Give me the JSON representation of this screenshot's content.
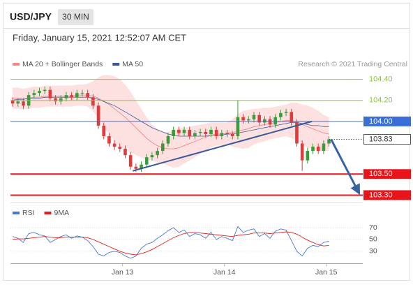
{
  "header": {
    "symbol": "USD/JPY",
    "interval": "30 MIN",
    "timestamp": "Friday, January 15, 2021 12:52:07 AM CET"
  },
  "chart_data": [
    {
      "type": "candlestick",
      "source": "Research © 2021 Trading Central",
      "xlim": [
        -0.4,
        65.3
      ],
      "ylim": [
        103.23,
        104.49
      ],
      "yticks": [
        {
          "value": 104.4,
          "label": "104.40"
        },
        {
          "value": 104.2,
          "label": "104.20"
        }
      ],
      "tick_color": "#8cc63f",
      "up_color": "#3c9a3c",
      "down_color": "#e03a3a",
      "open": [
        104.2,
        104.17,
        104.19,
        104.15,
        104.25,
        104.27,
        104.29,
        104.3,
        104.22,
        104.19,
        104.22,
        104.25,
        104.23,
        104.27,
        104.27,
        104.23,
        104.15,
        103.96,
        103.86,
        103.79,
        103.76,
        103.74,
        103.68,
        103.57,
        103.55,
        103.59,
        103.66,
        103.68,
        103.72,
        103.79,
        103.86,
        103.92,
        103.89,
        103.92,
        103.86,
        103.89,
        103.9,
        103.88,
        103.92,
        103.86,
        103.89,
        103.88,
        103.86,
        104.04,
        104.01,
        104.02,
        104.06,
        103.99,
        104.02,
        103.97,
        104.04,
        104.08,
        104.09,
        103.99,
        103.79,
        103.63,
        103.72,
        103.76,
        103.72,
        103.79
      ],
      "high": [
        104.23,
        104.22,
        104.22,
        104.28,
        104.3,
        104.32,
        104.33,
        104.33,
        104.25,
        104.25,
        104.28,
        104.28,
        104.3,
        104.3,
        104.3,
        104.26,
        104.18,
        103.99,
        103.89,
        103.82,
        103.79,
        103.77,
        103.71,
        103.6,
        103.62,
        103.69,
        103.71,
        103.75,
        103.82,
        103.89,
        103.95,
        103.95,
        103.95,
        103.95,
        103.92,
        103.93,
        103.93,
        103.95,
        103.95,
        103.92,
        103.92,
        103.91,
        104.2,
        104.07,
        104.05,
        104.09,
        104.09,
        104.05,
        104.05,
        104.07,
        104.11,
        104.12,
        104.12,
        104.02,
        103.82,
        103.75,
        103.79,
        103.79,
        103.82,
        103.86
      ],
      "low": [
        104.14,
        104.14,
        104.12,
        104.12,
        104.22,
        104.24,
        104.26,
        104.19,
        104.16,
        104.16,
        104.19,
        104.2,
        104.2,
        104.24,
        104.2,
        104.12,
        103.93,
        103.83,
        103.76,
        103.73,
        103.71,
        103.65,
        103.54,
        103.52,
        103.52,
        103.56,
        103.63,
        103.65,
        103.69,
        103.76,
        103.83,
        103.86,
        103.86,
        103.83,
        103.83,
        103.86,
        103.85,
        103.85,
        103.83,
        103.83,
        103.85,
        103.83,
        103.83,
        103.98,
        103.98,
        103.99,
        103.96,
        103.96,
        103.94,
        103.94,
        104.01,
        104.05,
        103.96,
        103.76,
        103.53,
        103.6,
        103.69,
        103.69,
        103.69,
        103.76
      ],
      "close": [
        104.17,
        104.19,
        104.15,
        104.25,
        104.27,
        104.29,
        104.3,
        104.22,
        104.19,
        104.22,
        104.25,
        104.23,
        104.27,
        104.27,
        104.23,
        104.15,
        103.96,
        103.86,
        103.79,
        103.76,
        103.74,
        103.68,
        103.57,
        103.55,
        103.59,
        103.66,
        103.68,
        103.72,
        103.79,
        103.86,
        103.92,
        103.89,
        103.92,
        103.86,
        103.89,
        103.9,
        103.88,
        103.92,
        103.86,
        103.89,
        103.88,
        103.86,
        104.04,
        104.01,
        104.02,
        104.06,
        103.99,
        104.02,
        103.97,
        104.04,
        104.08,
        104.09,
        103.99,
        103.79,
        103.63,
        103.72,
        103.76,
        103.72,
        103.79,
        103.83
      ],
      "series": [
        {
          "name": "MA 20 + Bollinger Bands",
          "color": "#f08a8a",
          "band_color": "#fde0e0",
          "values": [
            104.22,
            104.22,
            104.21,
            104.22,
            104.23,
            104.23,
            104.24,
            104.24,
            104.24,
            104.24,
            104.24,
            104.24,
            104.25,
            104.25,
            104.25,
            104.24,
            104.22,
            104.19,
            104.16,
            104.12,
            104.08,
            104.04,
            103.99,
            103.94,
            103.89,
            103.84,
            103.8,
            103.77,
            103.75,
            103.74,
            103.74,
            103.75,
            103.77,
            103.79,
            103.81,
            103.83,
            103.85,
            103.87,
            103.88,
            103.88,
            103.89,
            103.89,
            103.91,
            103.92,
            103.93,
            103.95,
            103.96,
            103.97,
            103.98,
            103.99,
            104.0,
            104.01,
            104.01,
            104.0,
            103.97,
            103.95,
            103.93,
            103.91,
            103.89,
            103.88
          ],
          "upper": [
            104.32,
            104.32,
            104.31,
            104.32,
            104.33,
            104.33,
            104.34,
            104.34,
            104.34,
            104.34,
            104.34,
            104.34,
            104.35,
            104.35,
            104.36,
            104.38,
            104.42,
            104.44,
            104.44,
            104.43,
            104.4,
            104.35,
            104.28,
            104.2,
            104.12,
            104.04,
            103.97,
            103.93,
            103.9,
            103.9,
            103.92,
            103.93,
            103.94,
            103.95,
            103.96,
            103.97,
            103.98,
            103.99,
            103.99,
            103.99,
            103.99,
            104.02,
            104.07,
            104.1,
            104.11,
            104.12,
            104.12,
            104.13,
            104.13,
            104.14,
            104.15,
            104.16,
            104.18,
            104.18,
            104.16,
            104.15,
            104.13,
            104.1,
            104.06,
            104.04
          ],
          "lower": [
            104.12,
            104.12,
            104.11,
            104.12,
            104.13,
            104.13,
            104.14,
            104.14,
            104.14,
            104.14,
            104.14,
            104.14,
            104.15,
            104.15,
            104.14,
            104.1,
            104.02,
            103.94,
            103.88,
            103.81,
            103.76,
            103.73,
            103.7,
            103.68,
            103.66,
            103.64,
            103.63,
            103.61,
            103.6,
            103.58,
            103.56,
            103.57,
            103.6,
            103.63,
            103.66,
            103.69,
            103.72,
            103.75,
            103.77,
            103.77,
            103.79,
            103.76,
            103.75,
            103.74,
            103.75,
            103.78,
            103.8,
            103.81,
            103.83,
            103.84,
            103.85,
            103.86,
            103.84,
            103.82,
            103.78,
            103.75,
            103.73,
            103.72,
            103.72,
            103.72
          ]
        },
        {
          "name": "MA 50",
          "color": "#3a5a9a",
          "values": [
            104.2,
            104.21,
            104.21,
            104.22,
            104.22,
            104.22,
            104.23,
            104.23,
            104.23,
            104.23,
            104.23,
            104.23,
            104.23,
            104.23,
            104.23,
            104.22,
            104.21,
            104.19,
            104.17,
            104.15,
            104.12,
            104.09,
            104.06,
            104.03,
            104.0,
            103.97,
            103.94,
            103.92,
            103.9,
            103.88,
            103.87,
            103.86,
            103.86,
            103.86,
            103.86,
            103.86,
            103.86,
            103.87,
            103.87,
            103.87,
            103.88,
            103.88,
            103.89,
            103.9,
            103.91,
            103.92,
            103.93,
            103.94,
            103.95,
            103.96,
            103.97,
            103.98,
            103.99,
            103.99,
            103.98,
            103.97,
            103.96,
            103.96,
            103.95,
            103.95
          ]
        }
      ],
      "levels": [
        {
          "value": 104.0,
          "label": "104.00",
          "color": "#3b6fd8"
        },
        {
          "value": 103.5,
          "label": "103.50",
          "color": "#e8141a"
        },
        {
          "value": 103.3,
          "label": "103.30",
          "color": "#e8141a"
        }
      ],
      "last_price": {
        "value": 103.83,
        "label": "103.83"
      },
      "trendlines": [
        {
          "x": [
            22.4,
            55.8
          ],
          "y": [
            103.53,
            104.0
          ],
          "color": "#3a5a9a"
        }
      ],
      "forecast_arrow": {
        "x": [
          59.4,
          64.6
        ],
        "y": [
          103.83,
          103.32
        ],
        "color": "#3464a4"
      }
    },
    {
      "type": "line",
      "xlim": [
        -0.4,
        65.3
      ],
      "ylim": [
        12,
        95
      ],
      "xticks": [
        {
          "value": 20.5,
          "label": "Jan 13"
        },
        {
          "value": 39.5,
          "label": "Jan 14"
        },
        {
          "value": 58.5,
          "label": "Jan 15"
        }
      ],
      "yticks": [
        70,
        50,
        30
      ],
      "series": [
        {
          "name": "RSI",
          "color": "#4a78d0",
          "values": [
            55,
            52,
            45,
            60,
            62,
            58,
            56,
            45,
            50,
            55,
            58,
            52,
            56,
            54,
            48,
            38,
            25,
            22,
            28,
            30,
            28,
            22,
            18,
            22,
            35,
            42,
            45,
            52,
            58,
            65,
            70,
            62,
            66,
            55,
            60,
            58,
            52,
            62,
            50,
            55,
            52,
            48,
            72,
            62,
            66,
            68,
            55,
            60,
            52,
            64,
            68,
            66,
            48,
            30,
            22,
            35,
            40,
            38,
            45,
            47
          ]
        },
        {
          "name": "9MA",
          "color": "#e02020",
          "values": [
            50,
            51,
            51,
            52,
            53,
            54,
            55,
            54,
            53,
            53,
            54,
            54,
            54,
            54,
            53,
            50,
            46,
            42,
            38,
            34,
            30,
            27,
            25,
            24,
            26,
            29,
            33,
            38,
            43,
            48,
            53,
            57,
            60,
            62,
            62,
            61,
            60,
            59,
            58,
            57,
            56,
            55,
            57,
            58,
            59,
            61,
            61,
            61,
            60,
            61,
            62,
            63,
            62,
            59,
            54,
            49,
            45,
            41,
            39,
            40
          ]
        }
      ]
    }
  ]
}
